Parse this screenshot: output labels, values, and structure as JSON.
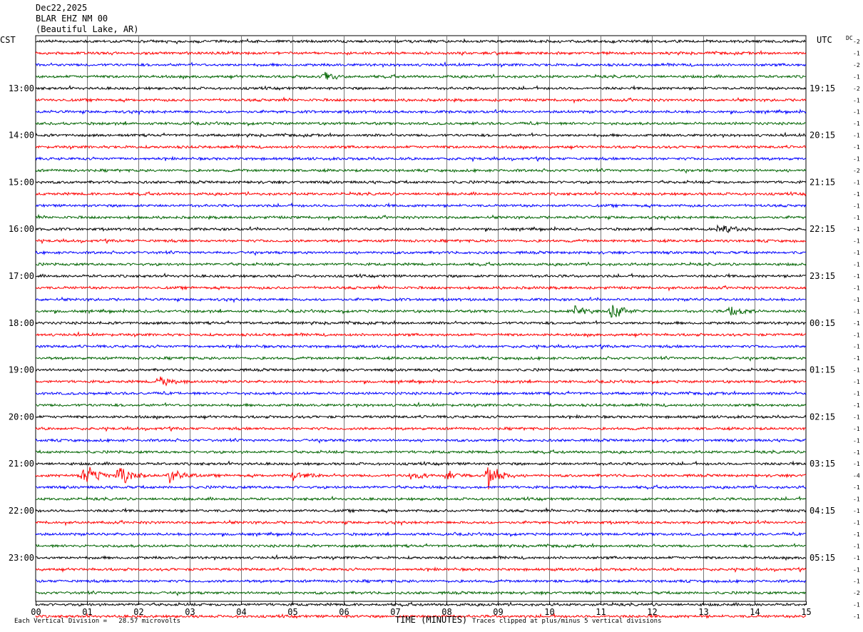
{
  "header": {
    "date": "Dec22,2025",
    "station": "BLAR EHZ NM 00",
    "location": "(Beautiful Lake, AR)"
  },
  "chart_data": {
    "type": "line",
    "title": "",
    "left_timezone": "CST",
    "right_timezone": "UTC",
    "right_column_header": "DC",
    "xlabel": "TIME (MINUTES)",
    "xlim": [
      0,
      15
    ],
    "x_ticks": [
      "00",
      "01",
      "02",
      "03",
      "04",
      "05",
      "06",
      "07",
      "08",
      "09",
      "10",
      "11",
      "12",
      "13",
      "14",
      "15"
    ],
    "lines_per_hour": 4,
    "minutes_per_line": 15,
    "trace_colors": [
      "#000000",
      "#ff0000",
      "#0000ff",
      "#006400"
    ],
    "left_hour_labels": [
      "13:00",
      "14:00",
      "15:00",
      "16:00",
      "17:00",
      "18:00",
      "19:00",
      "20:00",
      "21:00",
      "22:00",
      "23:00"
    ],
    "right_hour_labels": [
      "19:15",
      "20:15",
      "21:15",
      "22:15",
      "23:15",
      "00:15",
      "01:15",
      "02:15",
      "03:15",
      "04:15",
      "05:15"
    ],
    "dc_offsets": [
      "-2",
      "-1",
      "-2",
      "-1",
      "-2",
      "-1",
      "-1",
      "-1",
      "-1",
      "-1",
      "-1",
      "-2",
      "-1",
      "-1",
      "-1",
      "-1",
      "-1",
      "-1",
      "-1",
      "-1",
      "-1",
      "-1",
      "-1",
      "-1",
      "-1",
      "-1",
      "-1",
      "-1",
      "-1",
      "-1",
      "-1",
      "-1",
      "-1",
      "-1",
      "-1",
      "-1",
      "-1",
      "-4",
      "-1",
      "-1",
      "-1",
      "-1",
      "-1",
      "-1",
      "-1",
      "-1",
      "-1",
      "-2",
      "-1",
      "-1"
    ],
    "events": [
      {
        "trace": 37,
        "minute": 0.9,
        "size": 3.0
      },
      {
        "trace": 37,
        "minute": 1.6,
        "size": 3.0
      },
      {
        "trace": 37,
        "minute": 2.6,
        "size": 1.6
      },
      {
        "trace": 37,
        "minute": 5.0,
        "size": 1.0
      },
      {
        "trace": 37,
        "minute": 7.3,
        "size": 1.0
      },
      {
        "trace": 37,
        "minute": 8.0,
        "size": 1.2
      },
      {
        "trace": 37,
        "minute": 8.8,
        "size": 3.0
      },
      {
        "trace": 23,
        "minute": 11.2,
        "size": 2.0
      },
      {
        "trace": 23,
        "minute": 10.5,
        "size": 1.3
      },
      {
        "trace": 23,
        "minute": 13.5,
        "size": 1.3
      },
      {
        "trace": 29,
        "minute": 2.4,
        "size": 1.5
      },
      {
        "trace": 3,
        "minute": 5.6,
        "size": 1.1
      },
      {
        "trace": 16,
        "minute": 13.3,
        "size": 0.9
      }
    ]
  },
  "footer": {
    "scale_note": "Each Vertical Division =   28.57 microvolts",
    "clip_note": "Traces clipped at plus/minus 5 vertical divisions"
  }
}
